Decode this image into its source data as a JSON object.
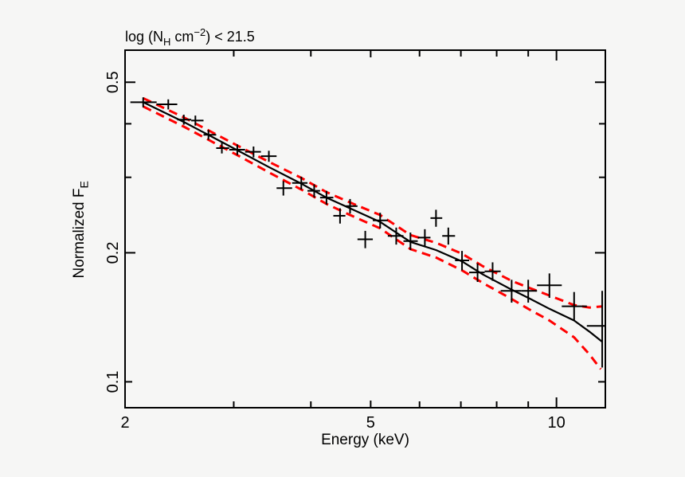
{
  "page": {
    "background_color": "#f6f6f5"
  },
  "colors": {
    "axis": "#000000",
    "data": "#000000",
    "model_line": "#000000",
    "confidence_band": "#ff0000"
  },
  "chart_data": {
    "type": "scatter",
    "title": "log (N_H cm^−2) < 21.5",
    "title_parts": [
      {
        "t": "log (N"
      },
      {
        "t": "H",
        "s": "sub"
      },
      {
        "t": " cm",
        "s": ""
      },
      {
        "t": "−2",
        "s": "sup"
      },
      {
        "t": ") < 21.5",
        "s": ""
      }
    ],
    "xlabel": "Energy (keV)",
    "ylabel": "Normalized F_E",
    "ylabel_parts": [
      {
        "t": "Normalized F"
      },
      {
        "t": "E",
        "s": "sub"
      }
    ],
    "x_scale": "log",
    "y_scale": "log",
    "xlim": [
      2.0,
      12.0
    ],
    "ylim": [
      0.087,
      0.594
    ],
    "grid": false,
    "legend": null,
    "x_ticks": {
      "labeled": [
        {
          "value": 2,
          "label": "2"
        },
        {
          "value": 5,
          "label": "5"
        },
        {
          "value": 10,
          "label": "10"
        }
      ],
      "minor": [
        3,
        4,
        6,
        7,
        8,
        9
      ]
    },
    "y_ticks": {
      "labeled": [
        {
          "value": 0.5,
          "label": "0.5"
        },
        {
          "value": 0.2,
          "label": "0.2"
        },
        {
          "value": 0.1,
          "label": "0.1"
        }
      ],
      "minor": [
        0.4,
        0.3
      ]
    },
    "series": [
      {
        "name": "data-errorbars",
        "style": "cross-errorbars",
        "color": "#000000",
        "points_format": [
          "x",
          "xlo",
          "xhi",
          "y",
          "ylo",
          "yhi"
        ],
        "points": [
          [
            2.14,
            2.04,
            2.25,
            0.449,
            0.437,
            0.461
          ],
          [
            2.35,
            2.25,
            2.43,
            0.444,
            0.432,
            0.456
          ],
          [
            2.49,
            2.43,
            2.56,
            0.409,
            0.398,
            0.42
          ],
          [
            2.6,
            2.56,
            2.68,
            0.407,
            0.396,
            0.418
          ],
          [
            2.73,
            2.68,
            2.81,
            0.377,
            0.367,
            0.387
          ],
          [
            2.87,
            2.81,
            2.95,
            0.351,
            0.341,
            0.361
          ],
          [
            3.04,
            2.95,
            3.13,
            0.348,
            0.338,
            0.358
          ],
          [
            3.23,
            3.13,
            3.32,
            0.344,
            0.334,
            0.354
          ],
          [
            3.42,
            3.32,
            3.52,
            0.336,
            0.326,
            0.346
          ],
          [
            3.61,
            3.52,
            3.73,
            0.283,
            0.272,
            0.294
          ],
          [
            3.86,
            3.73,
            3.95,
            0.291,
            0.281,
            0.301
          ],
          [
            4.05,
            3.95,
            4.14,
            0.279,
            0.269,
            0.289
          ],
          [
            4.24,
            4.14,
            4.35,
            0.269,
            0.259,
            0.279
          ],
          [
            4.46,
            4.35,
            4.55,
            0.244,
            0.234,
            0.254
          ],
          [
            4.63,
            4.55,
            4.76,
            0.257,
            0.247,
            0.267
          ],
          [
            4.9,
            4.76,
            5.04,
            0.215,
            0.205,
            0.225
          ],
          [
            5.18,
            5.04,
            5.33,
            0.238,
            0.228,
            0.248
          ],
          [
            5.5,
            5.33,
            5.65,
            0.219,
            0.209,
            0.229
          ],
          [
            5.8,
            5.65,
            5.96,
            0.213,
            0.203,
            0.223
          ],
          [
            6.12,
            5.96,
            6.25,
            0.217,
            0.207,
            0.227
          ],
          [
            6.38,
            6.25,
            6.53,
            0.241,
            0.23,
            0.252
          ],
          [
            6.68,
            6.53,
            6.85,
            0.219,
            0.209,
            0.229
          ],
          [
            7.03,
            6.85,
            7.22,
            0.192,
            0.182,
            0.202
          ],
          [
            7.45,
            7.22,
            7.65,
            0.18,
            0.171,
            0.189
          ],
          [
            7.88,
            7.65,
            8.12,
            0.181,
            0.172,
            0.19
          ],
          [
            8.46,
            8.12,
            8.78,
            0.163,
            0.153,
            0.173
          ],
          [
            9.0,
            8.78,
            9.3,
            0.163,
            0.153,
            0.173
          ],
          [
            9.74,
            9.3,
            10.2,
            0.168,
            0.157,
            0.179
          ],
          [
            10.68,
            10.2,
            11.2,
            0.15,
            0.139,
            0.162
          ],
          [
            11.86,
            11.2,
            12.0,
            0.135,
            0.108,
            0.163
          ]
        ]
      },
      {
        "name": "model",
        "style": "solid-line",
        "color": "#000000",
        "points": [
          [
            2.14,
            0.449
          ],
          [
            2.49,
            0.404
          ],
          [
            3.04,
            0.347
          ],
          [
            3.42,
            0.317
          ],
          [
            3.86,
            0.29
          ],
          [
            4.24,
            0.269
          ],
          [
            4.63,
            0.254
          ],
          [
            5.18,
            0.236
          ],
          [
            5.8,
            0.212
          ],
          [
            6.38,
            0.203
          ],
          [
            7.03,
            0.191
          ],
          [
            7.6,
            0.178
          ],
          [
            8.46,
            0.164
          ],
          [
            9.0,
            0.157
          ],
          [
            9.74,
            0.148
          ],
          [
            10.68,
            0.139
          ],
          [
            11.3,
            0.131
          ],
          [
            11.86,
            0.124
          ]
        ]
      },
      {
        "name": "confidence-upper",
        "style": "dashed-line",
        "color": "#ff0000",
        "points": [
          [
            2.14,
            0.459
          ],
          [
            2.49,
            0.414
          ],
          [
            3.04,
            0.356
          ],
          [
            3.42,
            0.326
          ],
          [
            3.86,
            0.299
          ],
          [
            4.24,
            0.277
          ],
          [
            4.63,
            0.262
          ],
          [
            5.18,
            0.245
          ],
          [
            5.8,
            0.22
          ],
          [
            6.38,
            0.211
          ],
          [
            7.03,
            0.199
          ],
          [
            7.6,
            0.186
          ],
          [
            8.46,
            0.172
          ],
          [
            9.0,
            0.166
          ],
          [
            9.74,
            0.159
          ],
          [
            10.68,
            0.151
          ],
          [
            11.3,
            0.149
          ],
          [
            11.86,
            0.15
          ]
        ]
      },
      {
        "name": "confidence-lower",
        "style": "dashed-line",
        "color": "#ff0000",
        "points": [
          [
            2.14,
            0.439
          ],
          [
            2.49,
            0.394
          ],
          [
            3.04,
            0.338
          ],
          [
            3.42,
            0.308
          ],
          [
            3.86,
            0.281
          ],
          [
            4.24,
            0.26
          ],
          [
            4.63,
            0.245
          ],
          [
            5.18,
            0.228
          ],
          [
            5.8,
            0.204
          ],
          [
            6.38,
            0.195
          ],
          [
            7.03,
            0.182
          ],
          [
            7.6,
            0.17
          ],
          [
            8.46,
            0.156
          ],
          [
            9.0,
            0.148
          ],
          [
            9.74,
            0.139
          ],
          [
            10.68,
            0.127
          ],
          [
            11.3,
            0.116
          ],
          [
            11.8,
            0.107
          ]
        ]
      }
    ]
  }
}
